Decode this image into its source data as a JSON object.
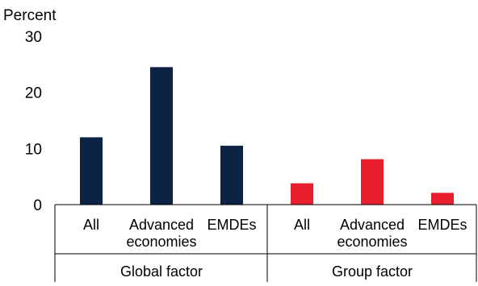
{
  "chart_data": {
    "type": "bar",
    "ylabel": "Percent",
    "ylim": [
      0,
      30
    ],
    "yticks": [
      0,
      10,
      20,
      30
    ],
    "grid": false,
    "groups": [
      {
        "name": "Global factor",
        "color": "#0d2345",
        "categories": [
          [
            "All"
          ],
          [
            "Advanced",
            "economies"
          ],
          [
            "EMDEs"
          ]
        ],
        "values": [
          12,
          24.5,
          10.5
        ]
      },
      {
        "name": "Group factor",
        "color": "#e8202e",
        "categories": [
          [
            "All"
          ],
          [
            "Advanced",
            "economies"
          ],
          [
            "EMDEs"
          ]
        ],
        "values": [
          3.8,
          8.1,
          2.1
        ]
      }
    ]
  }
}
